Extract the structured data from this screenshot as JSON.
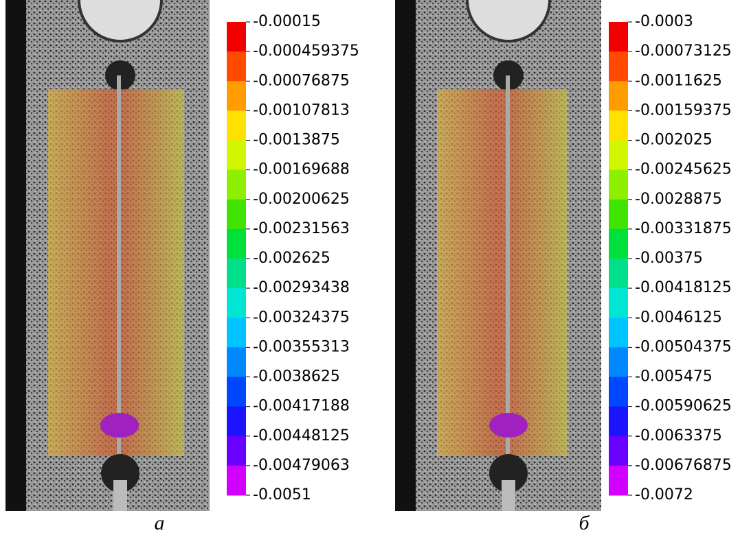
{
  "colorbar_colors": [
    "#f20000",
    "#ff4a00",
    "#ff9c00",
    "#ffe100",
    "#d2f500",
    "#8ef000",
    "#3fe400",
    "#00e03a",
    "#00e08c",
    "#00e6d2",
    "#00c4ff",
    "#0088ff",
    "#0048ff",
    "#1c14ff",
    "#6a00ff",
    "#d200ff"
  ],
  "panels": [
    {
      "caption": "а",
      "colorbar_labels": [
        "-0.00015",
        "-0.000459375",
        "-0.00076875",
        "-0.00107813",
        "-0.0013875",
        "-0.00169688",
        "-0.00200625",
        "-0.00231563",
        "-0.002625",
        "-0.00293438",
        "-0.00324375",
        "-0.00355313",
        "-0.0038625",
        "-0.00417188",
        "-0.00448125",
        "-0.00479063",
        "-0.0051"
      ]
    },
    {
      "caption": "б",
      "colorbar_labels": [
        "-0.0003",
        "-0.00073125",
        "-0.0011625",
        "-0.00159375",
        "-0.002025",
        "-0.00245625",
        "-0.0028875",
        "-0.00331875",
        "-0.00375",
        "-0.00418125",
        "-0.0046125",
        "-0.00504375",
        "-0.005475",
        "-0.00590625",
        "-0.0063375",
        "-0.00676875",
        "-0.0072"
      ]
    }
  ]
}
